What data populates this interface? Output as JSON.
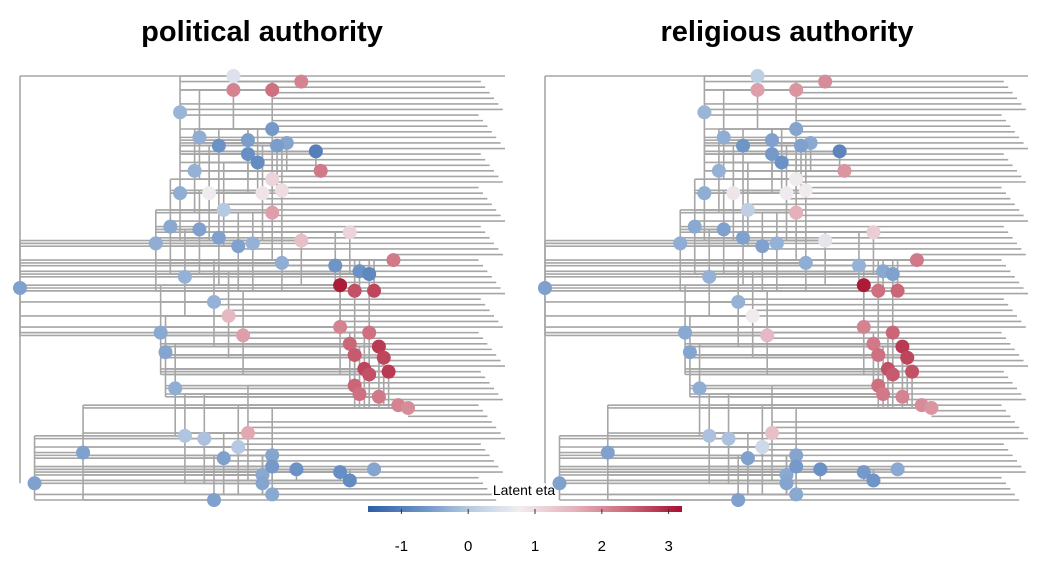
{
  "chart_data": {
    "type": "scatter",
    "panels": [
      {
        "title": "political authority",
        "tips": 77,
        "nodes": [
          {
            "x": 0.0,
            "y": 38.0,
            "eta": -0.5
          },
          {
            "x": 0.03,
            "y": 73.0,
            "eta": -0.5
          },
          {
            "x": 0.13,
            "y": 67.5,
            "eta": -0.5
          },
          {
            "x": 0.32,
            "y": 56.0,
            "eta": -0.35
          },
          {
            "x": 0.4,
            "y": 76.0,
            "eta": -0.5
          },
          {
            "x": 0.44,
            "y": 0.0,
            "eta": 0.5
          },
          {
            "x": 0.29,
            "y": 46.0,
            "eta": -0.4
          },
          {
            "x": 0.3,
            "y": 49.5,
            "eta": -0.45
          },
          {
            "x": 0.31,
            "y": 27.0,
            "eta": -0.4
          },
          {
            "x": 0.33,
            "y": 21.0,
            "eta": -0.35
          },
          {
            "x": 0.34,
            "y": 36.0,
            "eta": -0.3
          },
          {
            "x": 0.37,
            "y": 11.0,
            "eta": -0.35
          },
          {
            "x": 0.36,
            "y": 17.0,
            "eta": -0.3
          },
          {
            "x": 0.33,
            "y": 6.5,
            "eta": -0.25
          },
          {
            "x": 0.28,
            "y": 30.0,
            "eta": -0.35
          },
          {
            "x": 0.44,
            "y": 2.5,
            "eta": 2.1
          },
          {
            "x": 0.52,
            "y": 2.5,
            "eta": 2.3
          },
          {
            "x": 0.58,
            "y": 1.0,
            "eta": 2.1
          },
          {
            "x": 0.41,
            "y": 12.5,
            "eta": -0.7
          },
          {
            "x": 0.47,
            "y": 14.0,
            "eta": -0.75
          },
          {
            "x": 0.49,
            "y": 15.5,
            "eta": -0.8
          },
          {
            "x": 0.55,
            "y": 12.0,
            "eta": -0.45
          },
          {
            "x": 0.61,
            "y": 13.5,
            "eta": -1.0
          },
          {
            "x": 0.39,
            "y": 21.0,
            "eta": 0.8
          },
          {
            "x": 0.42,
            "y": 24.0,
            "eta": 0.0
          },
          {
            "x": 0.37,
            "y": 27.5,
            "eta": -0.5
          },
          {
            "x": 0.41,
            "y": 29.0,
            "eta": -0.5
          },
          {
            "x": 0.45,
            "y": 30.5,
            "eta": -0.5
          },
          {
            "x": 0.48,
            "y": 30.0,
            "eta": -0.3
          },
          {
            "x": 0.54,
            "y": 33.5,
            "eta": -0.35
          },
          {
            "x": 0.52,
            "y": 18.5,
            "eta": 1.1
          },
          {
            "x": 0.5,
            "y": 21.0,
            "eta": 0.9
          },
          {
            "x": 0.54,
            "y": 20.5,
            "eta": 1.0
          },
          {
            "x": 0.52,
            "y": 24.5,
            "eta": 1.8
          },
          {
            "x": 0.62,
            "y": 17.0,
            "eta": 2.2
          },
          {
            "x": 0.58,
            "y": 29.5,
            "eta": 1.4
          },
          {
            "x": 0.68,
            "y": 28.0,
            "eta": 1.1
          },
          {
            "x": 0.65,
            "y": 34.0,
            "eta": -0.65
          },
          {
            "x": 0.7,
            "y": 35.0,
            "eta": -0.7
          },
          {
            "x": 0.72,
            "y": 35.5,
            "eta": -0.85
          },
          {
            "x": 0.77,
            "y": 33.0,
            "eta": 2.2
          },
          {
            "x": 0.69,
            "y": 38.5,
            "eta": 2.6
          },
          {
            "x": 0.73,
            "y": 38.5,
            "eta": 2.7
          },
          {
            "x": 0.66,
            "y": 37.5,
            "eta": 3.1
          },
          {
            "x": 0.4,
            "y": 40.5,
            "eta": -0.3
          },
          {
            "x": 0.43,
            "y": 43.0,
            "eta": 1.5
          },
          {
            "x": 0.46,
            "y": 46.5,
            "eta": 1.8
          },
          {
            "x": 0.66,
            "y": 45.0,
            "eta": 2.1
          },
          {
            "x": 0.68,
            "y": 48.0,
            "eta": 2.4
          },
          {
            "x": 0.72,
            "y": 46.0,
            "eta": 2.3
          },
          {
            "x": 0.69,
            "y": 50.0,
            "eta": 2.5
          },
          {
            "x": 0.71,
            "y": 52.5,
            "eta": 2.7
          },
          {
            "x": 0.72,
            "y": 53.5,
            "eta": 2.6
          },
          {
            "x": 0.74,
            "y": 48.5,
            "eta": 2.8
          },
          {
            "x": 0.76,
            "y": 53.0,
            "eta": 2.8
          },
          {
            "x": 0.75,
            "y": 50.5,
            "eta": 2.7
          },
          {
            "x": 0.69,
            "y": 55.5,
            "eta": 2.4
          },
          {
            "x": 0.7,
            "y": 57.0,
            "eta": 2.3
          },
          {
            "x": 0.74,
            "y": 57.5,
            "eta": 2.2
          },
          {
            "x": 0.78,
            "y": 59.0,
            "eta": 2.1
          },
          {
            "x": 0.8,
            "y": 59.5,
            "eta": 2.0
          },
          {
            "x": 0.34,
            "y": 64.5,
            "eta": -0.05
          },
          {
            "x": 0.38,
            "y": 65.0,
            "eta": -0.1
          },
          {
            "x": 0.47,
            "y": 64.0,
            "eta": 1.7
          },
          {
            "x": 0.45,
            "y": 66.5,
            "eta": 0.0
          },
          {
            "x": 0.42,
            "y": 68.5,
            "eta": -0.5
          },
          {
            "x": 0.52,
            "y": 68.0,
            "eta": -0.45
          },
          {
            "x": 0.5,
            "y": 71.5,
            "eta": -0.4
          },
          {
            "x": 0.52,
            "y": 70.0,
            "eta": -0.6
          },
          {
            "x": 0.5,
            "y": 73.0,
            "eta": -0.45
          },
          {
            "x": 0.57,
            "y": 70.5,
            "eta": -0.7
          },
          {
            "x": 0.66,
            "y": 71.0,
            "eta": -0.75
          },
          {
            "x": 0.68,
            "y": 72.5,
            "eta": -0.8
          },
          {
            "x": 0.73,
            "y": 70.5,
            "eta": -0.45
          },
          {
            "x": 0.52,
            "y": 75.0,
            "eta": -0.4
          },
          {
            "x": 0.47,
            "y": 11.5,
            "eta": -0.55
          },
          {
            "x": 0.52,
            "y": 9.5,
            "eta": -0.6
          },
          {
            "x": 0.53,
            "y": 12.5,
            "eta": -0.55
          }
        ]
      },
      {
        "title": "religious authority",
        "tips": 77,
        "nodes": [
          {
            "x": 0.0,
            "y": 38.0,
            "eta": -0.5
          },
          {
            "x": 0.03,
            "y": 73.0,
            "eta": -0.5
          },
          {
            "x": 0.13,
            "y": 67.5,
            "eta": -0.5
          },
          {
            "x": 0.32,
            "y": 56.0,
            "eta": -0.35
          },
          {
            "x": 0.4,
            "y": 76.0,
            "eta": -0.5
          },
          {
            "x": 0.44,
            "y": 0.0,
            "eta": 0.1
          },
          {
            "x": 0.29,
            "y": 46.0,
            "eta": -0.4
          },
          {
            "x": 0.3,
            "y": 49.5,
            "eta": -0.45
          },
          {
            "x": 0.31,
            "y": 27.0,
            "eta": -0.4
          },
          {
            "x": 0.33,
            "y": 21.0,
            "eta": -0.35
          },
          {
            "x": 0.34,
            "y": 36.0,
            "eta": -0.3
          },
          {
            "x": 0.37,
            "y": 11.0,
            "eta": -0.35
          },
          {
            "x": 0.36,
            "y": 17.0,
            "eta": -0.3
          },
          {
            "x": 0.33,
            "y": 6.5,
            "eta": -0.25
          },
          {
            "x": 0.28,
            "y": 30.0,
            "eta": -0.35
          },
          {
            "x": 0.44,
            "y": 2.5,
            "eta": 1.8
          },
          {
            "x": 0.52,
            "y": 2.5,
            "eta": 1.9
          },
          {
            "x": 0.58,
            "y": 1.0,
            "eta": 2.0
          },
          {
            "x": 0.41,
            "y": 12.5,
            "eta": -0.65
          },
          {
            "x": 0.47,
            "y": 14.0,
            "eta": -0.6
          },
          {
            "x": 0.49,
            "y": 15.5,
            "eta": -0.7
          },
          {
            "x": 0.55,
            "y": 12.0,
            "eta": -0.4
          },
          {
            "x": 0.61,
            "y": 13.5,
            "eta": -0.9
          },
          {
            "x": 0.39,
            "y": 21.0,
            "eta": 0.9
          },
          {
            "x": 0.42,
            "y": 24.0,
            "eta": 0.1
          },
          {
            "x": 0.37,
            "y": 27.5,
            "eta": -0.5
          },
          {
            "x": 0.41,
            "y": 29.0,
            "eta": -0.5
          },
          {
            "x": 0.45,
            "y": 30.5,
            "eta": -0.5
          },
          {
            "x": 0.48,
            "y": 30.0,
            "eta": -0.3
          },
          {
            "x": 0.54,
            "y": 33.5,
            "eta": -0.35
          },
          {
            "x": 0.52,
            "y": 18.5,
            "eta": 0.8
          },
          {
            "x": 0.5,
            "y": 21.0,
            "eta": 0.7
          },
          {
            "x": 0.54,
            "y": 20.5,
            "eta": 0.8
          },
          {
            "x": 0.52,
            "y": 24.5,
            "eta": 1.6
          },
          {
            "x": 0.62,
            "y": 17.0,
            "eta": 1.9
          },
          {
            "x": 0.58,
            "y": 29.5,
            "eta": 0.6
          },
          {
            "x": 0.68,
            "y": 28.0,
            "eta": 1.2
          },
          {
            "x": 0.65,
            "y": 34.0,
            "eta": -0.3
          },
          {
            "x": 0.7,
            "y": 35.0,
            "eta": -0.4
          },
          {
            "x": 0.72,
            "y": 35.5,
            "eta": -0.5
          },
          {
            "x": 0.77,
            "y": 33.0,
            "eta": 2.2
          },
          {
            "x": 0.69,
            "y": 38.5,
            "eta": 2.3
          },
          {
            "x": 0.73,
            "y": 38.5,
            "eta": 2.4
          },
          {
            "x": 0.66,
            "y": 37.5,
            "eta": 3.1
          },
          {
            "x": 0.4,
            "y": 40.5,
            "eta": -0.3
          },
          {
            "x": 0.43,
            "y": 43.0,
            "eta": 0.8
          },
          {
            "x": 0.46,
            "y": 46.5,
            "eta": 1.5
          },
          {
            "x": 0.66,
            "y": 45.0,
            "eta": 2.1
          },
          {
            "x": 0.68,
            "y": 48.0,
            "eta": 2.2
          },
          {
            "x": 0.72,
            "y": 46.0,
            "eta": 2.4
          },
          {
            "x": 0.69,
            "y": 50.0,
            "eta": 2.3
          },
          {
            "x": 0.71,
            "y": 52.5,
            "eta": 2.6
          },
          {
            "x": 0.72,
            "y": 53.5,
            "eta": 2.5
          },
          {
            "x": 0.74,
            "y": 48.5,
            "eta": 2.8
          },
          {
            "x": 0.76,
            "y": 53.0,
            "eta": 2.6
          },
          {
            "x": 0.75,
            "y": 50.5,
            "eta": 2.7
          },
          {
            "x": 0.69,
            "y": 55.5,
            "eta": 2.3
          },
          {
            "x": 0.7,
            "y": 57.0,
            "eta": 2.2
          },
          {
            "x": 0.74,
            "y": 57.5,
            "eta": 2.1
          },
          {
            "x": 0.78,
            "y": 59.0,
            "eta": 2.0
          },
          {
            "x": 0.8,
            "y": 59.5,
            "eta": 1.9
          },
          {
            "x": 0.34,
            "y": 64.5,
            "eta": -0.1
          },
          {
            "x": 0.38,
            "y": 65.0,
            "eta": -0.1
          },
          {
            "x": 0.47,
            "y": 64.0,
            "eta": 1.4
          },
          {
            "x": 0.45,
            "y": 66.5,
            "eta": 0.3
          },
          {
            "x": 0.42,
            "y": 68.5,
            "eta": -0.5
          },
          {
            "x": 0.52,
            "y": 68.0,
            "eta": -0.45
          },
          {
            "x": 0.5,
            "y": 71.5,
            "eta": -0.4
          },
          {
            "x": 0.52,
            "y": 70.0,
            "eta": -0.6
          },
          {
            "x": 0.5,
            "y": 73.0,
            "eta": -0.45
          },
          {
            "x": 0.57,
            "y": 70.5,
            "eta": -0.7
          },
          {
            "x": 0.66,
            "y": 71.0,
            "eta": -0.6
          },
          {
            "x": 0.68,
            "y": 72.5,
            "eta": -0.65
          },
          {
            "x": 0.73,
            "y": 70.5,
            "eta": -0.4
          },
          {
            "x": 0.52,
            "y": 75.0,
            "eta": -0.4
          },
          {
            "x": 0.47,
            "y": 11.5,
            "eta": -0.5
          },
          {
            "x": 0.52,
            "y": 9.5,
            "eta": -0.45
          },
          {
            "x": 0.53,
            "y": 12.5,
            "eta": -0.5
          }
        ]
      }
    ],
    "legend": {
      "title": "Latent eta",
      "position": "bottom-center",
      "ticks": [
        -1,
        0,
        1,
        2,
        3
      ],
      "range": [
        -1.5,
        3.2
      ],
      "colors": [
        "#2c5ea8",
        "#6f95c6",
        "#b6c9e2",
        "#f1eef0",
        "#e4b1ba",
        "#cc6b7c",
        "#a8102f"
      ]
    }
  }
}
